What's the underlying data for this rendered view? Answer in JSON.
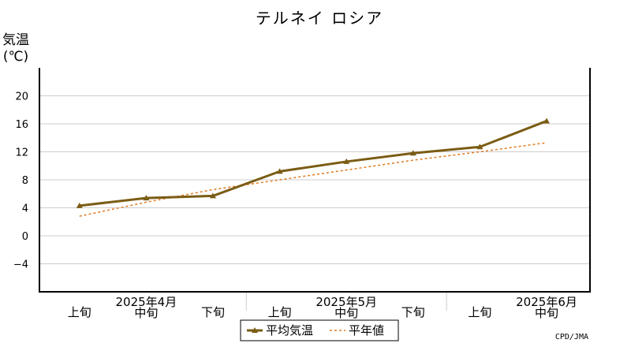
{
  "chart_data": {
    "type": "line",
    "title": "テルネイ ロシア",
    "ylabel_line1": "気温",
    "ylabel_line2": "(℃)",
    "ylim": [
      -8,
      24
    ],
    "yticks": [
      -4,
      0,
      4,
      8,
      12,
      16,
      20
    ],
    "ytick_labels": [
      "−4",
      "0",
      "4",
      "8",
      "12",
      "16",
      "20"
    ],
    "categories": [
      "上旬",
      "中旬",
      "下旬",
      "上旬",
      "中旬",
      "下旬",
      "上旬",
      "中旬"
    ],
    "month_labels": [
      "2025年4月",
      "2025年5月",
      "2025年6月"
    ],
    "grid": true,
    "legend_position": "bottom",
    "series": [
      {
        "name": "平均気温",
        "style": "solid",
        "marker": "triangle",
        "color": "#7a5c14",
        "values": [
          4.3,
          5.4,
          5.7,
          9.2,
          10.6,
          11.8,
          12.7,
          16.4
        ]
      },
      {
        "name": "平年値",
        "style": "dashed",
        "color": "#e07a1f",
        "values": [
          2.8,
          4.8,
          6.6,
          8.0,
          9.4,
          10.8,
          12.0,
          13.3
        ]
      }
    ],
    "credit": "CPD/JMA"
  }
}
